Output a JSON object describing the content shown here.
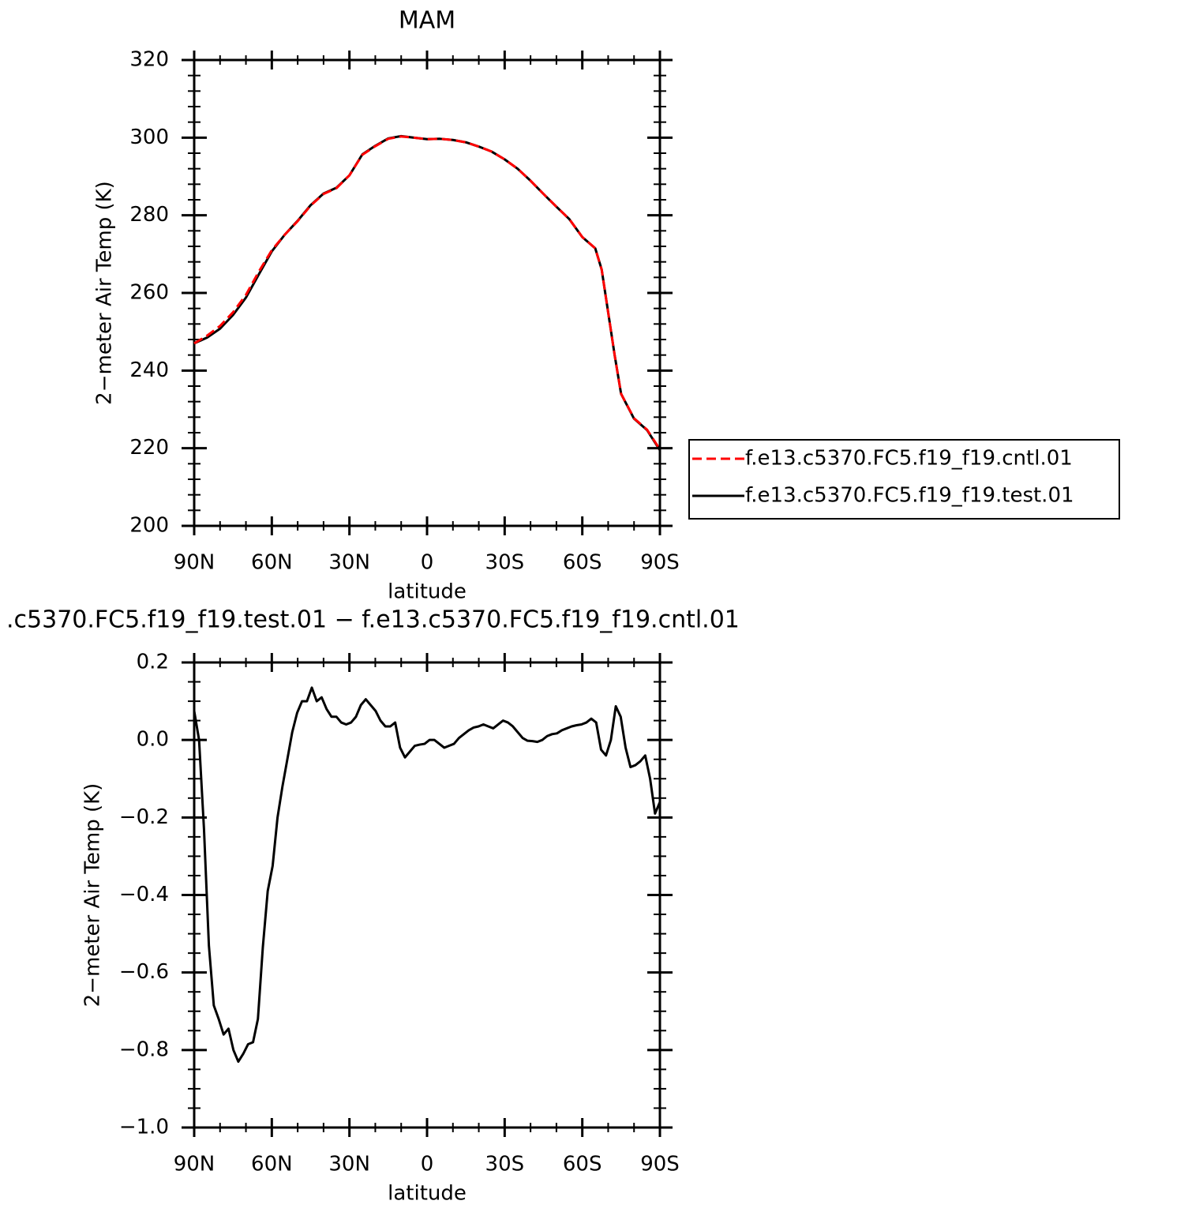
{
  "chart_data": [
    {
      "type": "line",
      "title": "MAM",
      "xlabel": "latitude",
      "ylabel": "2−meter Air Temp (K)",
      "xlim": [
        90,
        -90
      ],
      "ylim": [
        200,
        320
      ],
      "xticks": [
        {
          "value": 90,
          "label": "90N"
        },
        {
          "value": 60,
          "label": "60N"
        },
        {
          "value": 30,
          "label": "30N"
        },
        0,
        {
          "value": -30,
          "label": "30S"
        },
        {
          "value": -60,
          "label": "60S"
        },
        {
          "value": -90,
          "label": "90S"
        }
      ],
      "xminorticks": [
        80,
        70,
        50,
        40,
        20,
        10,
        -10,
        -20,
        -40,
        -50,
        -70,
        -80
      ],
      "yticks": [
        200,
        220,
        240,
        260,
        280,
        300,
        320
      ],
      "yminorticks": [
        204,
        208,
        212,
        216,
        224,
        228,
        232,
        236,
        244,
        248,
        252,
        256,
        264,
        268,
        272,
        276,
        284,
        288,
        292,
        296,
        304,
        308,
        312,
        316
      ],
      "legend": "right",
      "x": [
        90,
        85,
        80,
        75,
        70,
        65,
        60,
        55,
        50,
        45,
        40,
        35,
        30,
        25,
        20,
        15,
        10,
        5,
        0,
        -5,
        -10,
        -15,
        -20,
        -25,
        -30,
        -35,
        -40,
        -45,
        -50,
        -55,
        -60,
        -65,
        -67.5,
        -70,
        -72.5,
        -75,
        -80,
        -85,
        -90
      ],
      "series": [
        {
          "name": "f.e13.c5370.FC5.f19_f19.cntl.01",
          "color": "#ff0000",
          "style": "dashed",
          "values": [
            247,
            249,
            251.5,
            255,
            259.5,
            265.5,
            271,
            275,
            278.5,
            282.5,
            285.5,
            287,
            290.3,
            295.6,
            297.8,
            299.7,
            300.3,
            300,
            299.6,
            299.7,
            299.4,
            298.8,
            297.7,
            296.4,
            294.4,
            292,
            288.9,
            285.5,
            282.2,
            279,
            274.4,
            271.5,
            266,
            255,
            244,
            234,
            227.7,
            224.8,
            219.7
          ]
        },
        {
          "name": "f.e13.c5370.FC5.f19_f19.test.01",
          "color": "#000000",
          "style": "solid",
          "values": [
            247,
            248.5,
            250.8,
            254.3,
            258.8,
            264.8,
            270.7,
            275,
            278.6,
            282.6,
            285.6,
            287.1,
            290.3,
            295.7,
            297.9,
            299.8,
            300.4,
            300,
            299.6,
            299.7,
            299.4,
            298.8,
            297.7,
            296.4,
            294.4,
            292,
            288.9,
            285.5,
            282.2,
            279,
            274.4,
            271.5,
            266,
            255,
            244,
            234,
            227.6,
            224.7,
            219.5
          ]
        }
      ]
    },
    {
      "type": "line",
      "title": ".c5370.FC5.f19_f19.test.01 − f.e13.c5370.FC5.f19_f19.cntl.01",
      "xlabel": "latitude",
      "ylabel": "2−meter Air Temp (K)",
      "xlim": [
        90,
        -90
      ],
      "ylim": [
        -1.0,
        0.2
      ],
      "xticks": [
        {
          "value": 90,
          "label": "90N"
        },
        {
          "value": 60,
          "label": "60N"
        },
        {
          "value": 30,
          "label": "30N"
        },
        0,
        {
          "value": -30,
          "label": "30S"
        },
        {
          "value": -60,
          "label": "60S"
        },
        {
          "value": -90,
          "label": "90S"
        }
      ],
      "xminorticks": [
        80,
        70,
        50,
        40,
        20,
        10,
        -10,
        -20,
        -40,
        -50,
        -70,
        -80
      ],
      "yticks": [
        {
          "value": -1.0,
          "label": "−1.0"
        },
        {
          "value": -0.8,
          "label": "−0.8"
        },
        {
          "value": -0.6,
          "label": "−0.6"
        },
        {
          "value": -0.4,
          "label": "−0.4"
        },
        {
          "value": -0.2,
          "label": "−0.2"
        },
        {
          "value": 0,
          "label": "0.0"
        },
        0.2
      ],
      "yminorticks": [
        -0.95,
        -0.9,
        -0.85,
        -0.75,
        -0.7,
        -0.65,
        -0.55,
        -0.5,
        -0.45,
        -0.35,
        -0.3,
        -0.25,
        -0.15,
        -0.1,
        -0.05,
        0.05,
        0.1,
        0.15
      ],
      "x": [
        90.0,
        88.11,
        86.21,
        84.32,
        82.42,
        80.53,
        78.63,
        76.74,
        74.84,
        72.95,
        71.05,
        69.16,
        67.26,
        65.37,
        63.47,
        61.58,
        59.68,
        57.79,
        55.89,
        54.0,
        52.11,
        50.21,
        48.32,
        46.42,
        44.53,
        42.63,
        40.74,
        38.84,
        36.95,
        35.05,
        33.16,
        31.26,
        29.37,
        27.47,
        25.58,
        23.68,
        21.79,
        19.89,
        18.0,
        16.11,
        14.21,
        12.32,
        10.42,
        8.53,
        6.63,
        4.74,
        2.84,
        0.95,
        -0.95,
        -2.84,
        -4.74,
        -6.63,
        -8.53,
        -10.42,
        -12.32,
        -14.21,
        -16.11,
        -18.0,
        -19.89,
        -21.79,
        -23.68,
        -25.58,
        -27.47,
        -29.37,
        -31.26,
        -33.16,
        -35.05,
        -36.95,
        -38.84,
        -40.74,
        -42.63,
        -44.53,
        -46.42,
        -48.32,
        -50.21,
        -52.11,
        -54.0,
        -55.89,
        -57.79,
        -59.68,
        -61.58,
        -63.47,
        -65.37,
        -67.26,
        -69.16,
        -71.05,
        -72.95,
        -74.84,
        -76.74,
        -78.63,
        -80.53,
        -82.42,
        -84.32,
        -86.21,
        -88.11,
        -90.0
      ],
      "series": [
        {
          "color": "#000000",
          "style": "solid",
          "values": [
            0.075,
            0.0,
            -0.23,
            -0.53,
            -0.685,
            -0.72,
            -0.76,
            -0.745,
            -0.8,
            -0.83,
            -0.81,
            -0.785,
            -0.78,
            -0.72,
            -0.535,
            -0.39,
            -0.325,
            -0.2,
            -0.12,
            -0.05,
            0.02,
            0.07,
            0.1,
            0.1,
            0.135,
            0.1,
            0.11,
            0.08,
            0.06,
            0.06,
            0.045,
            0.04,
            0.045,
            0.06,
            0.09,
            0.105,
            0.09,
            0.075,
            0.05,
            0.035,
            0.035,
            0.045,
            -0.02,
            -0.045,
            -0.03,
            -0.015,
            -0.012,
            -0.01,
            0.0,
            0.0,
            -0.01,
            -0.02,
            -0.015,
            -0.01,
            0.005,
            0.015,
            0.025,
            0.032,
            0.035,
            0.04,
            0.035,
            0.03,
            0.04,
            0.05,
            0.045,
            0.035,
            0.02,
            0.005,
            -0.002,
            -0.003,
            -0.005,
            0.0,
            0.01,
            0.015,
            0.017,
            0.025,
            0.03,
            0.035,
            0.038,
            0.04,
            0.045,
            0.055,
            0.045,
            -0.025,
            -0.04,
            0.0,
            0.087,
            0.06,
            -0.02,
            -0.07,
            -0.065,
            -0.055,
            -0.04,
            -0.1,
            -0.19,
            -0.16
          ]
        }
      ]
    }
  ]
}
